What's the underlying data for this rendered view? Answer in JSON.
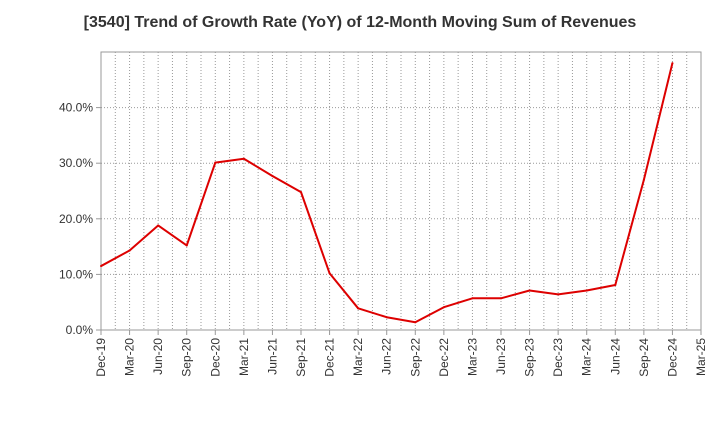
{
  "chart_data": {
    "type": "line",
    "title": "[3540]  Trend of Growth Rate (YoY) of 12-Month Moving Sum of Revenues",
    "xlabel": "",
    "ylabel": "",
    "ylim": [
      0,
      50
    ],
    "y_ticks": [
      {
        "value": 0,
        "label": "0.0%"
      },
      {
        "value": 10,
        "label": "10.0%"
      },
      {
        "value": 20,
        "label": "20.0%"
      },
      {
        "value": 30,
        "label": "30.0%"
      },
      {
        "value": 40,
        "label": "40.0%"
      }
    ],
    "x_tick_labels": [
      "Dec-19",
      "Mar-20",
      "Jun-20",
      "Sep-20",
      "Dec-20",
      "Mar-21",
      "Jun-21",
      "Sep-21",
      "Dec-21",
      "Mar-22",
      "Jun-22",
      "Sep-22",
      "Dec-22",
      "Mar-23",
      "Jun-23",
      "Sep-23",
      "Dec-23",
      "Mar-24",
      "Jun-24",
      "Sep-24",
      "Dec-24",
      "Mar-25"
    ],
    "series": [
      {
        "color": "#dd0000",
        "x": [
          "Dec-19",
          "Mar-20",
          "Jun-20",
          "Sep-20",
          "Dec-20",
          "Mar-21",
          "Jun-21",
          "Sep-21",
          "Dec-21",
          "Mar-22",
          "Jun-22",
          "Sep-22",
          "Dec-22",
          "Mar-23",
          "Jun-23",
          "Sep-23",
          "Dec-23",
          "Mar-24",
          "Jun-24",
          "Sep-24",
          "Dec-24"
        ],
        "values": [
          11.5,
          14.3,
          18.8,
          15.2,
          30.1,
          30.8,
          27.7,
          24.8,
          10.2,
          3.9,
          2.3,
          1.4,
          4.1,
          5.7,
          5.7,
          7.1,
          6.4,
          7.1,
          8.1,
          27.0,
          48.0
        ]
      }
    ],
    "grid": true,
    "gridline_color": "#999999",
    "axis_color": "#999999",
    "tick_label_color": "#333333"
  }
}
